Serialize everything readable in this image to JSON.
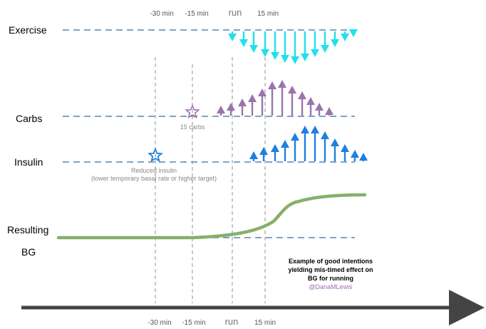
{
  "timeline": {
    "top_labels": [
      "-30 min",
      "-15 min",
      "run",
      "15 min"
    ],
    "bottom_labels": [
      "-30 min",
      "-15 min",
      "run",
      "15 min"
    ]
  },
  "rows": {
    "exercise": "Exercise",
    "carbs": "Carbs",
    "insulin": "Insulin",
    "resulting": "Resulting",
    "bg": "BG"
  },
  "notes": {
    "carbs_note": "15 carbs",
    "insulin_note_1": "Reduced insulin",
    "insulin_note_2": "(lower temporary basal rate or higher target)"
  },
  "caption": {
    "line1": "Example of good intentions",
    "line2": "yielding mis-timed effect on",
    "line3": "BG for running",
    "credit": "@DanaMLewis"
  },
  "colors": {
    "dashed_line": "#7fa3c8",
    "time_guides": "#b5b5b5",
    "exercise": "#22e0ec",
    "carbs": "#9b73ad",
    "insulin": "#1e7fe0",
    "bg_curve": "#86b06a",
    "axis": "#444444"
  }
}
